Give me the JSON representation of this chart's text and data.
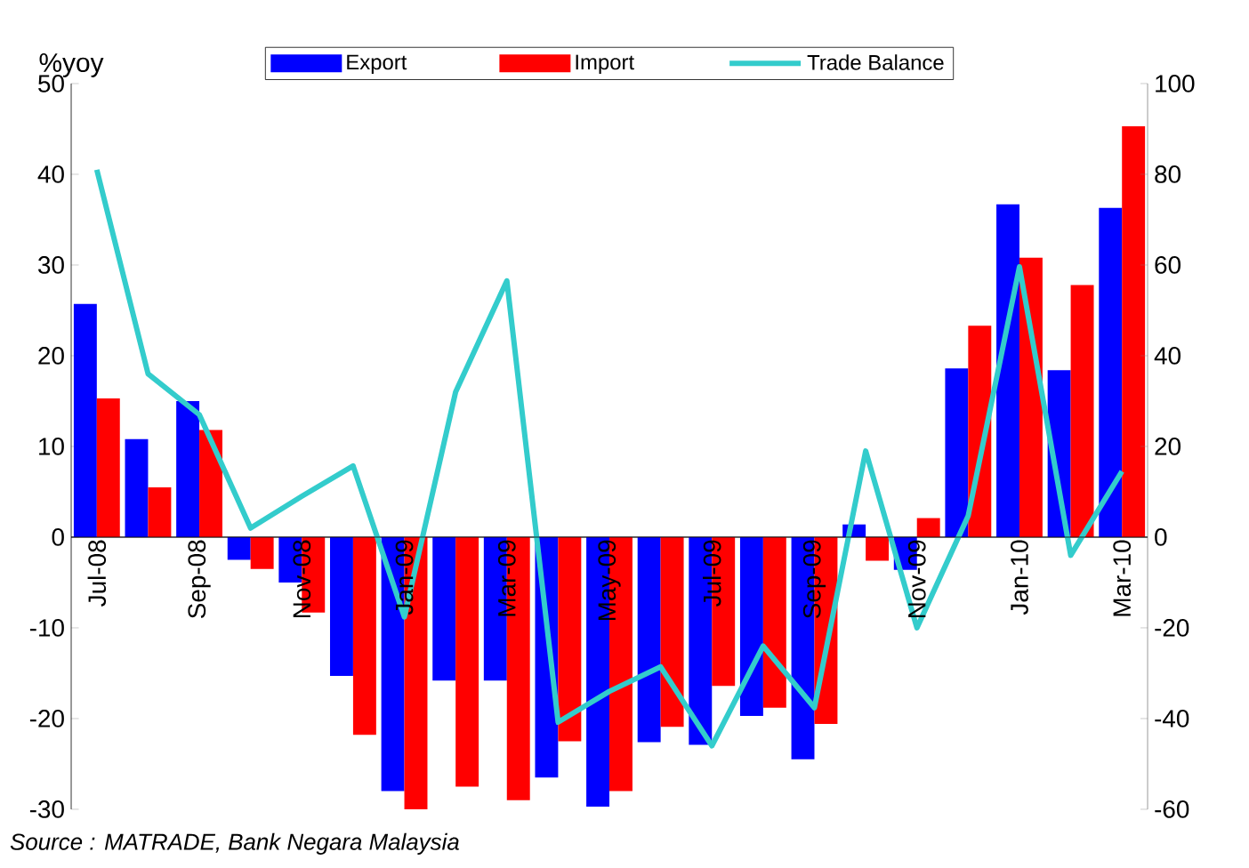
{
  "chart_data": {
    "type": "bar",
    "ylabel": "%yoy",
    "categories": [
      "Jul-08",
      null,
      "Sep-08",
      null,
      "Nov-08",
      null,
      "Jan-09",
      null,
      "Mar-09",
      null,
      "May-09",
      null,
      "Jul-09",
      null,
      "Sep-09",
      null,
      "Nov-09",
      null,
      "Jan-10",
      null,
      "Mar-10"
    ],
    "series": [
      {
        "name": "Export",
        "color": "#0000ff",
        "values": [
          25.7,
          10.8,
          15,
          -2.5,
          -5,
          -15.3,
          -28,
          -15.8,
          -15.8,
          -26.5,
          -29.7,
          -22.6,
          -22.9,
          -19.7,
          -24.5,
          1.4,
          -3.6,
          18.6,
          36.7,
          18.4,
          36.3
        ]
      },
      {
        "name": "Import",
        "color": "#ff0000",
        "values": [
          15.3,
          5.5,
          11.8,
          -3.5,
          -8.3,
          -21.8,
          -30,
          -27.5,
          -29,
          -22.5,
          -28,
          -20.9,
          -16.4,
          -18.8,
          -20.6,
          -2.6,
          2.1,
          23.3,
          30.8,
          27.8,
          45.3
        ]
      },
      {
        "name": "Trade Balance",
        "color": "#33cccc",
        "type": "line",
        "axis": "y2",
        "values": [
          81,
          36,
          27,
          2,
          9,
          15.7,
          -17.6,
          32,
          56.5,
          -40.8,
          -34,
          -28.6,
          -46,
          -24,
          -37.6,
          19,
          -20,
          4.7,
          59.6,
          -4,
          14.5
        ]
      }
    ],
    "ylim": [
      -30,
      50
    ],
    "yticks": [
      -30,
      -20,
      -10,
      0,
      10,
      20,
      30,
      40,
      50
    ],
    "y2lim": [
      -60,
      100
    ],
    "y2ticks": [
      -60,
      -40,
      -20,
      0,
      20,
      40,
      60,
      80,
      100
    ],
    "legend": "top",
    "marker": "none",
    "annotations": [
      "Source : MATRADE, Bank Negara Malaysia"
    ]
  }
}
